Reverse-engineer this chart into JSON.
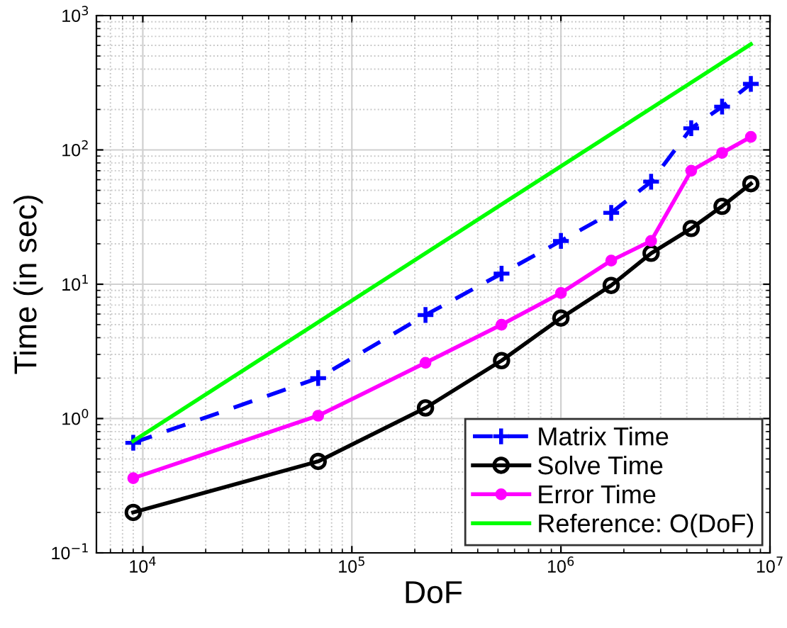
{
  "chart_data": {
    "type": "line",
    "xlabel": "DoF",
    "ylabel": "Time (in sec)",
    "log": "xy",
    "grid": true,
    "legend": "bottom right",
    "xlim": [
      6000,
      10000000
    ],
    "ylim": [
      0.1,
      1000
    ],
    "xticks": [
      {
        "value": 10000,
        "label": "10$^{4}$"
      },
      {
        "value": 100000,
        "label": "10$^{5}$"
      },
      {
        "value": 1000000,
        "label": "10$^{6}$"
      },
      {
        "value": 10000000,
        "label": "10$^{7}$"
      }
    ],
    "yticks": [
      {
        "value": 0.1,
        "label": "10$^{−1}$"
      },
      {
        "value": 1,
        "label": "10$^{0}$"
      },
      {
        "value": 10,
        "label": "10$^{1}$"
      },
      {
        "value": 100,
        "label": "10$^{2}$"
      },
      {
        "value": 1000,
        "label": "10$^{3}$"
      }
    ],
    "x": [
      9000,
      69000,
      225000,
      520000,
      1000000,
      1740000,
      2700000,
      4200000,
      5900000,
      8100000
    ],
    "series": [
      {
        "name": "Matrix Time",
        "color": "#0000ff",
        "marker": "cross",
        "line_style": "dashed",
        "values": [
          0.66,
          2.0,
          5.9,
          12,
          21,
          34,
          58,
          145,
          210,
          310
        ]
      },
      {
        "name": "Solve Time",
        "color": "#000000",
        "marker": "circle",
        "line_style": "solid",
        "values": [
          0.2,
          0.48,
          1.2,
          2.7,
          5.6,
          9.8,
          17,
          26,
          38,
          56
        ]
      },
      {
        "name": "Error Time",
        "color": "#ff00ff",
        "marker": "filled circle",
        "line_style": "solid",
        "values": [
          0.36,
          1.05,
          2.6,
          5.0,
          8.6,
          15,
          21,
          70,
          95,
          125
        ]
      },
      {
        "name": "Reference: O(DoF)",
        "color": "#00ff00",
        "marker": "none",
        "line_style": "solid",
        "x": [
          9000,
          8100000
        ],
        "values": [
          0.68,
          612
        ]
      }
    ]
  }
}
